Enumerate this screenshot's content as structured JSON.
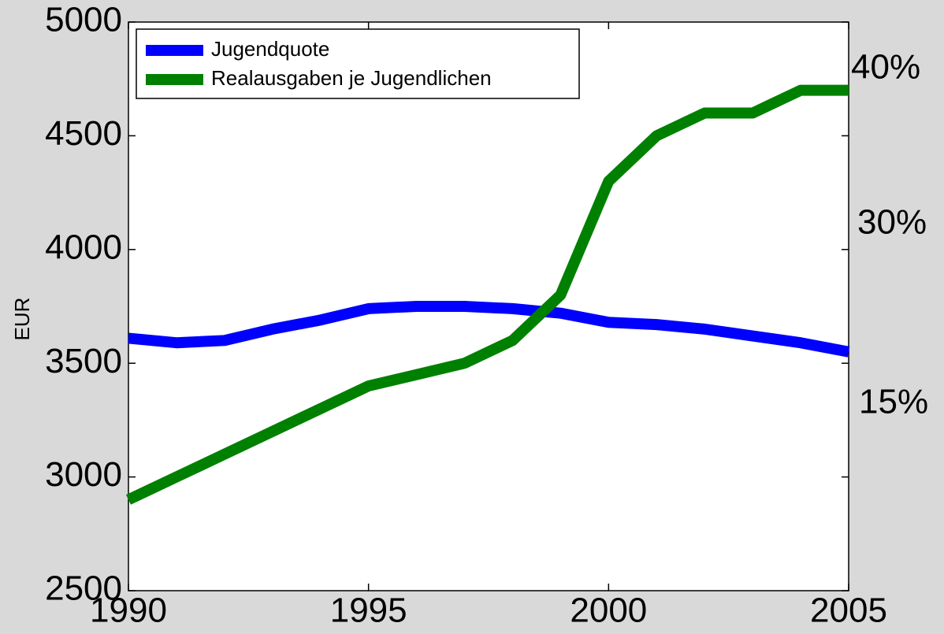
{
  "chart_data": {
    "type": "line",
    "ylabel": "EUR",
    "x": [
      1990,
      1991,
      1992,
      1993,
      1994,
      1995,
      1996,
      1997,
      1998,
      1999,
      2000,
      2001,
      2002,
      2003,
      2004,
      2005
    ],
    "series": [
      {
        "name": "Jugendquote",
        "color": "#0000ff",
        "values": [
          3610,
          3590,
          3600,
          3650,
          3690,
          3740,
          3750,
          3750,
          3740,
          3720,
          3680,
          3670,
          3650,
          3620,
          3590,
          3550
        ]
      },
      {
        "name": "Realausgaben je Jugendlichen",
        "color": "#008000",
        "values": [
          2900,
          3000,
          3100,
          3200,
          3300,
          3400,
          3450,
          3500,
          3600,
          3800,
          4300,
          4500,
          4600,
          4600,
          4700,
          4700
        ]
      }
    ],
    "xlim": [
      1990,
      2005
    ],
    "xticks": [
      1990,
      1995,
      2000,
      2005
    ],
    "ylim": [
      2500,
      5000
    ],
    "yticks": [
      2500,
      3000,
      3500,
      4000,
      4500,
      5000
    ],
    "annotations": [
      "40%",
      "30%",
      "15%"
    ],
    "legend": "upper left"
  }
}
